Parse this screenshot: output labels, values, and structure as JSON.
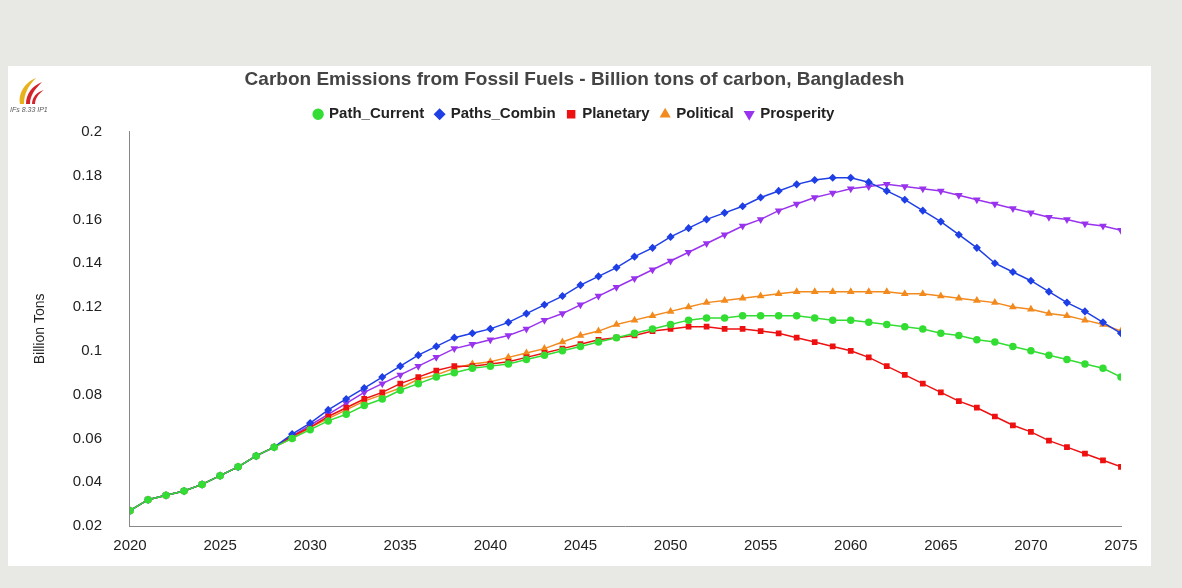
{
  "chart_data": {
    "type": "line",
    "title": "Carbon Emissions from Fossil Fuels - Billion tons of carbon, Bangladesh",
    "annotation": "IFs 8.33 IP1",
    "y_label": "Billion Tons",
    "x": [
      2020,
      2021,
      2022,
      2023,
      2024,
      2025,
      2026,
      2027,
      2028,
      2029,
      2030,
      2031,
      2032,
      2033,
      2034,
      2035,
      2036,
      2037,
      2038,
      2039,
      2040,
      2041,
      2042,
      2043,
      2044,
      2045,
      2046,
      2047,
      2048,
      2049,
      2050,
      2051,
      2052,
      2053,
      2054,
      2055,
      2056,
      2057,
      2058,
      2059,
      2060,
      2061,
      2062,
      2063,
      2064,
      2065,
      2066,
      2067,
      2068,
      2069,
      2070,
      2071,
      2072,
      2073,
      2074,
      2075
    ],
    "xlim": [
      2020,
      2075
    ],
    "xticks": [
      2020,
      2025,
      2030,
      2035,
      2040,
      2045,
      2050,
      2055,
      2060,
      2065,
      2070,
      2075
    ],
    "ylim": [
      0.02,
      0.2
    ],
    "yticks": [
      0.02,
      0.04,
      0.06,
      0.08,
      0.1,
      0.12,
      0.14,
      0.16,
      0.18,
      0.2
    ],
    "grid": false,
    "legend": "top",
    "series": [
      {
        "name": "Path_Current",
        "color": "#33dd33",
        "marker": "circle",
        "values": [
          0.027,
          0.032,
          0.034,
          0.036,
          0.039,
          0.043,
          0.047,
          0.052,
          0.056,
          0.06,
          0.064,
          0.068,
          0.071,
          0.075,
          0.078,
          0.082,
          0.085,
          0.088,
          0.09,
          0.092,
          0.093,
          0.094,
          0.096,
          0.098,
          0.1,
          0.102,
          0.104,
          0.106,
          0.108,
          0.11,
          0.112,
          0.114,
          0.115,
          0.115,
          0.116,
          0.116,
          0.116,
          0.116,
          0.115,
          0.114,
          0.114,
          0.113,
          0.112,
          0.111,
          0.11,
          0.108,
          0.107,
          0.105,
          0.104,
          0.102,
          0.1,
          0.098,
          0.096,
          0.094,
          0.092,
          0.088
        ]
      },
      {
        "name": "Paths_Combin",
        "color": "#1f3fe6",
        "marker": "diamond",
        "values": [
          0.027,
          0.032,
          0.034,
          0.036,
          0.039,
          0.043,
          0.047,
          0.052,
          0.056,
          0.062,
          0.067,
          0.073,
          0.078,
          0.083,
          0.088,
          0.093,
          0.098,
          0.102,
          0.106,
          0.108,
          0.11,
          0.113,
          0.117,
          0.121,
          0.125,
          0.13,
          0.134,
          0.138,
          0.143,
          0.147,
          0.152,
          0.156,
          0.16,
          0.163,
          0.166,
          0.17,
          0.173,
          0.176,
          0.178,
          0.179,
          0.179,
          0.177,
          0.173,
          0.169,
          0.164,
          0.159,
          0.153,
          0.147,
          0.14,
          0.136,
          0.132,
          0.127,
          0.122,
          0.118,
          0.113,
          0.108
        ]
      },
      {
        "name": "Planetary",
        "color": "#ee1111",
        "marker": "square",
        "values": [
          0.027,
          0.032,
          0.034,
          0.036,
          0.039,
          0.043,
          0.047,
          0.052,
          0.056,
          0.061,
          0.065,
          0.07,
          0.074,
          0.078,
          0.081,
          0.085,
          0.088,
          0.091,
          0.093,
          0.093,
          0.094,
          0.095,
          0.097,
          0.099,
          0.101,
          0.103,
          0.105,
          0.106,
          0.107,
          0.109,
          0.11,
          0.111,
          0.111,
          0.11,
          0.11,
          0.109,
          0.108,
          0.106,
          0.104,
          0.102,
          0.1,
          0.097,
          0.093,
          0.089,
          0.085,
          0.081,
          0.077,
          0.074,
          0.07,
          0.066,
          0.063,
          0.059,
          0.056,
          0.053,
          0.05,
          0.047
        ]
      },
      {
        "name": "Political",
        "color": "#f28a1e",
        "marker": "triangle",
        "values": [
          0.027,
          0.032,
          0.034,
          0.036,
          0.039,
          0.043,
          0.047,
          0.052,
          0.056,
          0.06,
          0.065,
          0.069,
          0.073,
          0.077,
          0.08,
          0.083,
          0.087,
          0.089,
          0.092,
          0.094,
          0.095,
          0.097,
          0.099,
          0.101,
          0.104,
          0.107,
          0.109,
          0.112,
          0.114,
          0.116,
          0.118,
          0.12,
          0.122,
          0.123,
          0.124,
          0.125,
          0.126,
          0.127,
          0.127,
          0.127,
          0.127,
          0.127,
          0.127,
          0.126,
          0.126,
          0.125,
          0.124,
          0.123,
          0.122,
          0.12,
          0.119,
          0.117,
          0.116,
          0.114,
          0.112,
          0.109
        ]
      },
      {
        "name": "Prosperity",
        "color": "#9933ee",
        "marker": "triangle-down",
        "values": [
          0.027,
          0.032,
          0.034,
          0.036,
          0.039,
          0.043,
          0.047,
          0.052,
          0.056,
          0.061,
          0.066,
          0.071,
          0.076,
          0.081,
          0.085,
          0.089,
          0.093,
          0.097,
          0.101,
          0.103,
          0.105,
          0.107,
          0.11,
          0.114,
          0.117,
          0.121,
          0.125,
          0.129,
          0.133,
          0.137,
          0.141,
          0.145,
          0.149,
          0.153,
          0.157,
          0.16,
          0.164,
          0.167,
          0.17,
          0.172,
          0.174,
          0.175,
          0.176,
          0.175,
          0.174,
          0.173,
          0.171,
          0.169,
          0.167,
          0.165,
          0.163,
          0.161,
          0.16,
          0.158,
          0.157,
          0.155
        ]
      }
    ]
  }
}
